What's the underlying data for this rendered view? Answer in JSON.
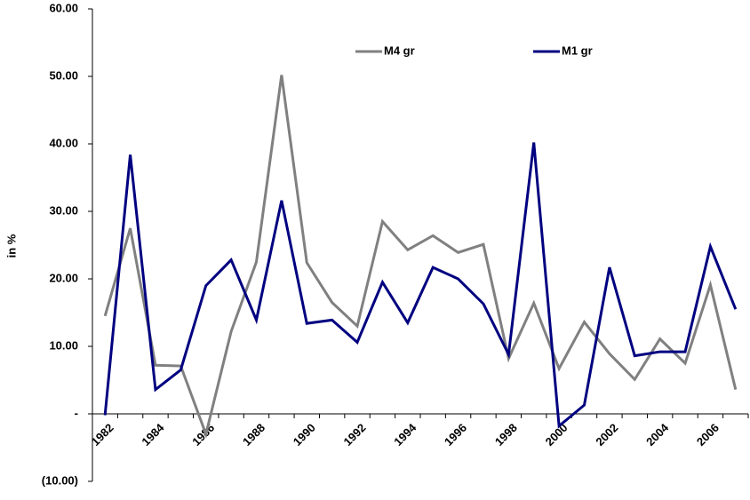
{
  "chart_data": {
    "type": "line",
    "y_label": "in %",
    "categories": [
      "1982",
      null,
      "1984",
      null,
      "1986",
      null,
      "1988",
      null,
      "1990",
      null,
      "1992",
      null,
      "1994",
      null,
      "1996",
      null,
      "1998",
      null,
      "2000",
      null,
      "2002",
      null,
      "2004",
      null,
      "2006",
      null
    ],
    "series": [
      {
        "name": "M4 gr",
        "color": "#808080",
        "values": [
          14.5,
          27.5,
          7.2,
          7.1,
          -3.0,
          12.2,
          22.5,
          50.2,
          22.4,
          16.5,
          13.0,
          28.5,
          24.3,
          26.4,
          23.9,
          25.1,
          8.2,
          16.4,
          6.7,
          13.6,
          8.9,
          5.1,
          11.1,
          7.5,
          19.1,
          3.6
        ]
      },
      {
        "name": "M1 gr",
        "color": "#000080",
        "values": [
          -0.2,
          38.4,
          3.6,
          6.5,
          19.0,
          22.8,
          13.9,
          31.6,
          13.4,
          13.9,
          10.6,
          19.5,
          13.5,
          21.7,
          20.0,
          16.3,
          8.8,
          40.2,
          -1.8,
          1.3,
          21.7,
          8.6,
          9.2,
          9.2,
          24.8,
          15.5
        ]
      }
    ],
    "ylim": [
      -10,
      60
    ],
    "yticks": [
      {
        "value": -10,
        "label": "(10.00)"
      },
      {
        "value": 0,
        "label": "-"
      },
      {
        "value": 10,
        "label": "10.00"
      },
      {
        "value": 20,
        "label": "20.00"
      },
      {
        "value": 30,
        "label": "30.00"
      },
      {
        "value": 40,
        "label": "40.00"
      },
      {
        "value": 50,
        "label": "50.00"
      },
      {
        "value": 60,
        "label": "60.00"
      }
    ]
  }
}
